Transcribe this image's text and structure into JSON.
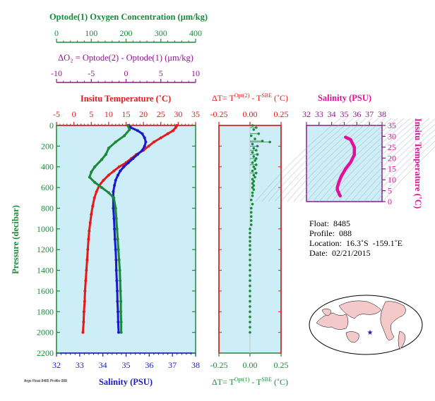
{
  "chart_data": [
    {
      "type": "line",
      "title": "",
      "ylabel": "Pressure (decibar)",
      "ylim": [
        0,
        2200
      ],
      "yticks": [
        0,
        200,
        400,
        600,
        800,
        1000,
        1200,
        1400,
        1600,
        1800,
        2000,
        2200
      ],
      "axes": {
        "oxygen": {
          "label": "Optode(1) Oxygen Concentration (μm/kg)",
          "range": [
            0,
            400
          ],
          "ticks": [
            0,
            100,
            200,
            300,
            400
          ],
          "color": "#1a8a3a"
        },
        "delta_o2": {
          "label": "ΔO₂ = Optode(2) - Optode(1)   (μm/kg)",
          "range": [
            -10,
            10
          ],
          "ticks": [
            -10,
            -5,
            0,
            5,
            10
          ],
          "color": "#8b1a8b"
        },
        "temperature": {
          "label": "Insitu Temperature (˚C)",
          "range": [
            -5,
            35
          ],
          "ticks": [
            -5,
            0,
            5,
            10,
            15,
            20,
            25,
            30,
            35
          ],
          "color": "#e41a1a"
        },
        "salinity": {
          "label": "Salinity (PSU)",
          "range": [
            32,
            38
          ],
          "ticks": [
            32,
            33,
            34,
            35,
            36,
            37,
            38
          ],
          "color": "#1a1acc"
        }
      },
      "series": [
        {
          "name": "Insitu Temperature",
          "color": "#e41a1a",
          "points": [
            [
              29.6,
              0
            ],
            [
              29.3,
              20
            ],
            [
              28.5,
              50
            ],
            [
              27,
              80
            ],
            [
              25,
              120
            ],
            [
              23,
              160
            ],
            [
              21.5,
              200
            ],
            [
              20,
              240
            ],
            [
              18,
              280
            ],
            [
              16.5,
              320
            ],
            [
              15,
              360
            ],
            [
              13,
              400
            ],
            [
              11.5,
              440
            ],
            [
              10,
              480
            ],
            [
              8.5,
              530
            ],
            [
              7.3,
              580
            ],
            [
              6.5,
              640
            ],
            [
              5.9,
              700
            ],
            [
              5.4,
              780
            ],
            [
              5,
              860
            ],
            [
              4.7,
              940
            ],
            [
              4.4,
              1020
            ],
            [
              4.2,
              1100
            ],
            [
              4,
              1200
            ],
            [
              3.8,
              1300
            ],
            [
              3.6,
              1400
            ],
            [
              3.4,
              1500
            ],
            [
              3.2,
              1600
            ],
            [
              3.1,
              1700
            ],
            [
              2.9,
              1800
            ],
            [
              2.8,
              1900
            ],
            [
              2.6,
              2000
            ]
          ]
        },
        {
          "name": "Salinity",
          "color": "#1a1acc",
          "points": [
            [
              35.1,
              0
            ],
            [
              35.2,
              20
            ],
            [
              35.5,
              50
            ],
            [
              35.7,
              80
            ],
            [
              35.8,
              120
            ],
            [
              35.85,
              160
            ],
            [
              35.8,
              200
            ],
            [
              35.7,
              240
            ],
            [
              35.5,
              280
            ],
            [
              35.3,
              320
            ],
            [
              35.1,
              360
            ],
            [
              34.9,
              400
            ],
            [
              34.75,
              440
            ],
            [
              34.65,
              480
            ],
            [
              34.55,
              530
            ],
            [
              34.5,
              580
            ],
            [
              34.45,
              640
            ],
            [
              34.45,
              700
            ],
            [
              34.45,
              800
            ],
            [
              34.48,
              900
            ],
            [
              34.5,
              1000
            ],
            [
              34.52,
              1100
            ],
            [
              34.55,
              1200
            ],
            [
              34.57,
              1300
            ],
            [
              34.58,
              1400
            ],
            [
              34.6,
              1500
            ],
            [
              34.62,
              1600
            ],
            [
              34.63,
              1700
            ],
            [
              34.65,
              1800
            ],
            [
              34.66,
              1900
            ],
            [
              34.68,
              2000
            ]
          ]
        },
        {
          "name": "Optode(1) Oxygen Concentration",
          "color": "#1a8a3a",
          "points": [
            [
              205,
              0
            ],
            [
              210,
              40
            ],
            [
              195,
              100
            ],
            [
              170,
              160
            ],
            [
              150,
              220
            ],
            [
              142,
              280
            ],
            [
              130,
              330
            ],
            [
              110,
              400
            ],
            [
              100,
              450
            ],
            [
              95,
              500
            ],
            [
              110,
              550
            ],
            [
              130,
              600
            ],
            [
              150,
              650
            ],
            [
              165,
              700
            ],
            [
              170,
              800
            ],
            [
              172,
              900
            ],
            [
              174,
              1000
            ],
            [
              176,
              1100
            ],
            [
              178,
              1200
            ],
            [
              180,
              1300
            ],
            [
              182,
              1400
            ],
            [
              183,
              1500
            ],
            [
              184,
              1600
            ],
            [
              185,
              1700
            ],
            [
              185,
              1800
            ],
            [
              186,
              1900
            ],
            [
              186,
              2000
            ]
          ]
        }
      ]
    },
    {
      "type": "scatter",
      "xlabel_top": "ΔT= Tᴼᵖᵗ⁽²⁾ - Tˢᴮᴱ (˚C)",
      "top_label_main": "ΔT= T",
      "top_label_sup1": "Opt(2)",
      "top_label_mid": " - T",
      "top_label_sup2": "SBE",
      "top_label_end": " (˚C)",
      "bottom_label_main": "ΔT= T",
      "bottom_label_sup1": "Opt(1)",
      "bottom_label_mid": " - T",
      "bottom_label_sup2": "SBE",
      "bottom_label_end": " (˚C)",
      "xlim": [
        -0.25,
        0.25
      ],
      "xticks": [
        "-0.25",
        "0.00",
        "0.25"
      ],
      "ylim": [
        0,
        2200
      ],
      "series": [
        {
          "color": "#1a8a3a",
          "points": [
            [
              0.02,
              0
            ],
            [
              0.05,
              20
            ],
            [
              0.03,
              40
            ],
            [
              0.07,
              80
            ],
            [
              0.01,
              100
            ],
            [
              0.04,
              130
            ],
            [
              0.1,
              150
            ],
            [
              0.16,
              160
            ],
            [
              0.02,
              180
            ],
            [
              0.06,
              200
            ],
            [
              0.03,
              220
            ],
            [
              0.05,
              240
            ],
            [
              0.02,
              260
            ],
            [
              0.06,
              280
            ],
            [
              0.03,
              300
            ],
            [
              0.05,
              320
            ],
            [
              0.04,
              340
            ],
            [
              0.02,
              360
            ],
            [
              0.05,
              380
            ],
            [
              0.03,
              400
            ],
            [
              0.04,
              420
            ],
            [
              0.02,
              440
            ],
            [
              0.05,
              460
            ],
            [
              0.03,
              480
            ],
            [
              0.04,
              500
            ],
            [
              0.02,
              520
            ],
            [
              0.03,
              540
            ],
            [
              0.02,
              560
            ],
            [
              0.03,
              580
            ],
            [
              0.02,
              600
            ],
            [
              0.03,
              620
            ],
            [
              0.02,
              650
            ],
            [
              0.02,
              680
            ],
            [
              0.01,
              720
            ],
            [
              0.02,
              760
            ],
            [
              0.01,
              800
            ],
            [
              0.01,
              840
            ],
            [
              0.01,
              880
            ],
            [
              0.01,
              920
            ],
            [
              0.01,
              960
            ],
            [
              0.0,
              1000
            ],
            [
              0.0,
              1040
            ],
            [
              0.0,
              1080
            ],
            [
              0.0,
              1120
            ],
            [
              0.0,
              1160
            ],
            [
              0.0,
              1200
            ],
            [
              0.0,
              1250
            ],
            [
              0.0,
              1300
            ],
            [
              0.0,
              1350
            ],
            [
              0.0,
              1400
            ],
            [
              0.0,
              1450
            ],
            [
              0.0,
              1500
            ],
            [
              0.0,
              1550
            ],
            [
              0.0,
              1600
            ],
            [
              0.0,
              1650
            ],
            [
              0.0,
              1700
            ],
            [
              0.0,
              1750
            ],
            [
              0.0,
              1800
            ],
            [
              0.0,
              1850
            ],
            [
              0.0,
              1900
            ],
            [
              0.0,
              1950
            ],
            [
              0.0,
              2000
            ]
          ]
        }
      ]
    },
    {
      "type": "line",
      "title": "Salinity (PSU)",
      "xlim": [
        32,
        38
      ],
      "xticks": [
        32,
        33,
        34,
        35,
        36,
        37,
        38
      ],
      "ylabel": "Insitu Temperature (˚C)",
      "ylim": [
        0,
        35
      ],
      "yticks": [
        0,
        5,
        10,
        15,
        20,
        25,
        30,
        35
      ],
      "series": [
        {
          "color": "#e0109a",
          "points": [
            [
              35.1,
              29.6
            ],
            [
              35.5,
              28.5
            ],
            [
              35.8,
              25
            ],
            [
              35.8,
              21.5
            ],
            [
              35.5,
              18
            ],
            [
              35.1,
              15
            ],
            [
              34.75,
              11.5
            ],
            [
              34.55,
              8.5
            ],
            [
              34.45,
              6.5
            ],
            [
              34.45,
              5.4
            ],
            [
              34.5,
              4.7
            ],
            [
              34.55,
              4.2
            ],
            [
              34.6,
              3.4
            ],
            [
              34.68,
              2.6
            ]
          ]
        }
      ]
    }
  ],
  "float_info": {
    "float": "Float:  8485",
    "profile": "Profile:  088",
    "location": "Location:  16.3˚S  -159.1˚E",
    "date": "Date:  02/21/2015"
  },
  "footer_note": "Argo Float 8485 Profile 088"
}
